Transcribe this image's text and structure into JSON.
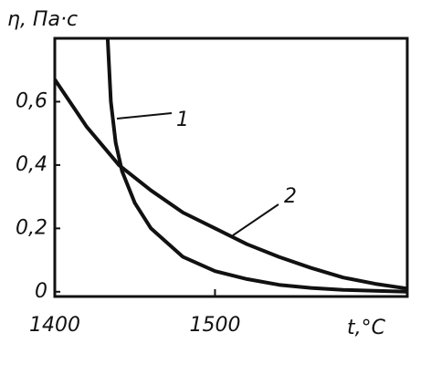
{
  "chart_data": {
    "type": "line",
    "y_label": "η, Па·с",
    "x_label": "t,°C",
    "xlim": [
      1400,
      1620
    ],
    "ylim": [
      -0.015,
      0.8
    ],
    "xticks": [
      1400,
      1500
    ],
    "yticks": [
      0,
      {
        "value": 0.2,
        "label": "0,2"
      },
      {
        "value": 0.4,
        "label": "0,4"
      },
      {
        "value": 0.6,
        "label": "0,6"
      }
    ],
    "series": [
      {
        "name": "1",
        "color": "#111111",
        "x": [
          1433,
          1435,
          1438,
          1442,
          1450,
          1460,
          1480,
          1500,
          1520,
          1540,
          1560,
          1580,
          1600,
          1620
        ],
        "values": [
          0.8,
          0.6,
          0.47,
          0.38,
          0.28,
          0.2,
          0.11,
          0.065,
          0.04,
          0.022,
          0.012,
          0.006,
          0.003,
          0.0
        ]
      },
      {
        "name": "2",
        "color": "#111111",
        "x": [
          1400,
          1420,
          1440,
          1460,
          1480,
          1500,
          1520,
          1540,
          1560,
          1580,
          1600,
          1620
        ],
        "values": [
          0.67,
          0.52,
          0.4,
          0.32,
          0.25,
          0.2,
          0.15,
          0.11,
          0.075,
          0.045,
          0.025,
          0.01
        ]
      }
    ]
  }
}
